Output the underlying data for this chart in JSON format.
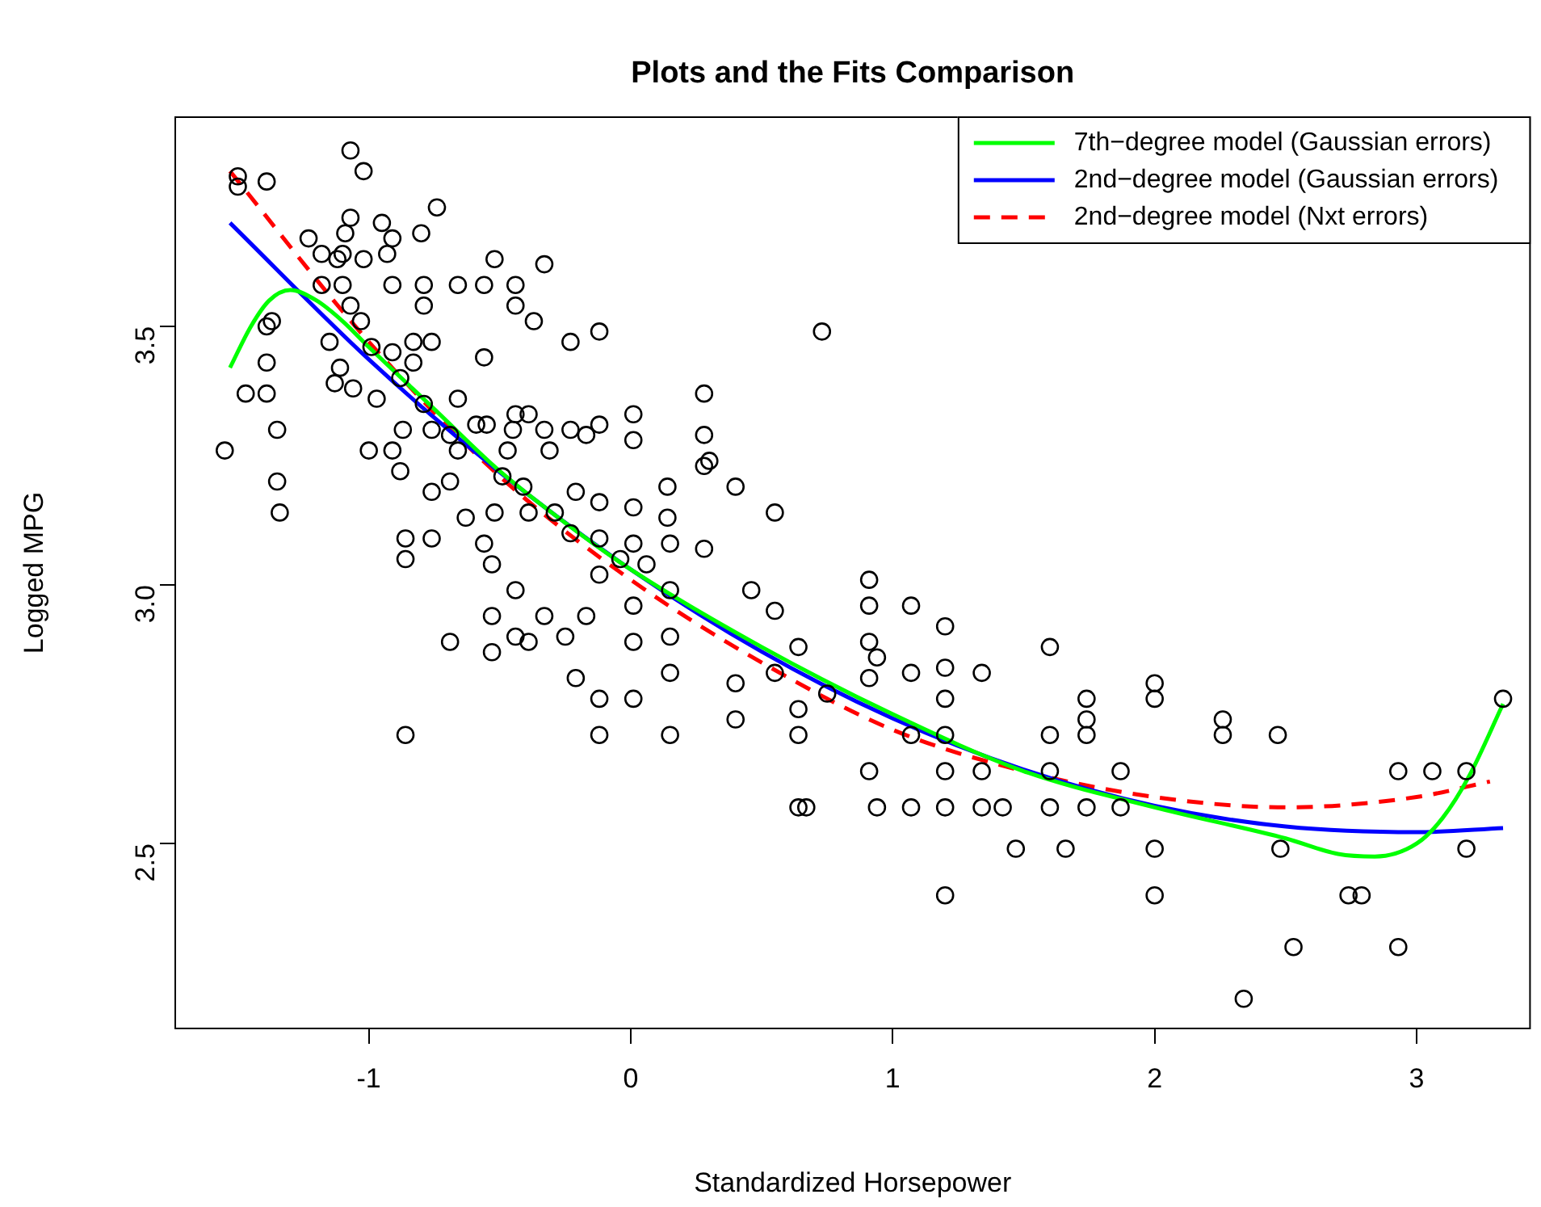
{
  "chart_data": {
    "type": "scatter",
    "title": "Plots and the Fits Comparison",
    "xlabel": "Standardized Horsepower",
    "ylabel": "Logged MPG",
    "xlim": [
      -1.742,
      3.436
    ],
    "ylim": [
      2.141,
      3.906
    ],
    "xticks": [
      -1,
      0,
      1,
      2,
      3
    ],
    "yticks": [
      2.5,
      {
        "value": 3,
        "label": "3.0"
      },
      3.5
    ],
    "grid": false,
    "legend": "top right",
    "marker": "circle",
    "series": [
      {
        "color": "#000000",
        "x": [
          -1.55,
          -1.5,
          -1.5,
          -1.39,
          -1.39,
          -1.37,
          -1.39,
          -1.39,
          -1.47,
          -1.34,
          -1.35,
          -1.35,
          -1.23,
          -1.18,
          -1.18,
          -1.15,
          -1.12,
          -1.07,
          -1.02,
          -1.07,
          -1.09,
          -1.1,
          -1.02,
          -1.1,
          -1.07,
          -1.03,
          -0.99,
          -1.11,
          -1.13,
          -1.06,
          -0.97,
          -0.91,
          -0.91,
          -0.93,
          -0.91,
          -0.95,
          -0.88,
          -0.87,
          -1.0,
          -0.91,
          -0.88,
          -0.83,
          -0.79,
          -0.79,
          -0.8,
          -0.83,
          -0.76,
          -0.79,
          -0.74,
          -0.76,
          -0.76,
          -0.76,
          -0.86,
          -0.86,
          -0.86,
          -0.69,
          -0.69,
          -0.69,
          -0.66,
          -0.66,
          -0.66,
          -0.63,
          -0.59,
          -0.56,
          -0.56,
          -0.56,
          -0.55,
          -0.52,
          -0.53,
          -0.53,
          -0.53,
          -0.52,
          -0.49,
          -0.47,
          -0.45,
          -0.44,
          -0.44,
          -0.44,
          -0.44,
          -0.44,
          -0.41,
          -0.39,
          -0.39,
          -0.39,
          -0.37,
          -0.33,
          -0.33,
          -0.33,
          -0.31,
          -0.29,
          -0.25,
          -0.23,
          -0.23,
          -0.23,
          -0.21,
          -0.21,
          -0.17,
          -0.17,
          -0.12,
          -0.12,
          -0.12,
          -0.12,
          -0.12,
          -0.12,
          -0.12,
          -0.04,
          0.01,
          0.01,
          0.01,
          0.01,
          0.01,
          0.01,
          0.01,
          0.06,
          0.14,
          0.14,
          0.15,
          0.15,
          0.15,
          0.15,
          0.15,
          0.28,
          0.28,
          0.28,
          0.28,
          0.3,
          0.4,
          0.4,
          0.4,
          0.46,
          0.55,
          0.55,
          0.55,
          0.64,
          0.64,
          0.64,
          0.64,
          0.67,
          0.73,
          0.75,
          0.91,
          0.91,
          0.91,
          0.91,
          0.91,
          0.94,
          0.94,
          1.07,
          1.07,
          1.07,
          1.07,
          1.2,
          1.2,
          1.2,
          1.2,
          1.2,
          1.2,
          1.2,
          1.34,
          1.34,
          1.34,
          1.42,
          1.47,
          1.6,
          1.6,
          1.6,
          1.6,
          1.66,
          1.74,
          1.74,
          1.74,
          1.74,
          1.87,
          1.87,
          2.0,
          2.0,
          2.0,
          2.0,
          2.26,
          2.26,
          2.47,
          2.48,
          2.53,
          2.34,
          2.74,
          2.79,
          2.93,
          2.93,
          3.06,
          3.19,
          3.19,
          3.33
        ],
        "values": [
          3.26,
          3.79,
          3.77,
          3.78,
          3.5,
          3.51,
          3.43,
          3.37,
          3.37,
          3.14,
          3.3,
          3.2,
          3.67,
          3.64,
          3.58,
          3.47,
          3.63,
          3.84,
          3.8,
          3.71,
          3.68,
          3.64,
          3.63,
          3.58,
          3.54,
          3.51,
          3.46,
          3.42,
          3.39,
          3.38,
          3.36,
          3.45,
          3.58,
          3.64,
          3.67,
          3.7,
          3.4,
          3.3,
          3.26,
          3.26,
          3.22,
          3.43,
          3.35,
          3.58,
          3.68,
          3.47,
          3.47,
          3.54,
          3.73,
          3.3,
          3.18,
          3.09,
          3.05,
          3.09,
          2.71,
          3.29,
          3.2,
          2.89,
          3.36,
          3.26,
          3.58,
          3.13,
          3.31,
          3.44,
          3.58,
          3.08,
          3.31,
          3.14,
          3.04,
          2.94,
          2.87,
          3.63,
          3.21,
          3.26,
          3.3,
          3.58,
          3.54,
          3.33,
          2.99,
          2.9,
          3.19,
          3.33,
          3.14,
          2.89,
          3.51,
          3.3,
          2.94,
          3.62,
          3.26,
          3.14,
          2.9,
          3.47,
          3.3,
          3.1,
          3.18,
          2.82,
          3.29,
          2.94,
          3.49,
          3.31,
          3.16,
          3.09,
          3.02,
          2.78,
          2.71,
          3.05,
          3.33,
          3.28,
          3.15,
          3.08,
          2.96,
          2.78,
          2.89,
          3.04,
          3.19,
          3.13,
          3.08,
          2.99,
          2.9,
          2.83,
          2.71,
          3.37,
          3.29,
          3.23,
          3.07,
          3.24,
          3.19,
          2.81,
          2.74,
          2.99,
          3.14,
          2.95,
          2.83,
          2.88,
          2.76,
          2.71,
          2.57,
          2.57,
          3.49,
          2.79,
          3.01,
          2.96,
          2.89,
          2.82,
          2.64,
          2.57,
          2.86,
          2.96,
          2.83,
          2.71,
          2.57,
          2.92,
          2.84,
          2.78,
          2.71,
          2.64,
          2.57,
          2.4,
          2.83,
          2.64,
          2.57,
          2.57,
          2.49,
          2.88,
          2.71,
          2.64,
          2.57,
          2.49,
          2.78,
          2.74,
          2.71,
          2.57,
          2.64,
          2.57,
          2.81,
          2.78,
          2.49,
          2.4,
          2.74,
          2.71,
          2.71,
          2.49,
          2.3,
          2.2,
          2.4,
          2.4,
          2.64,
          2.3,
          2.64,
          2.64,
          2.49,
          2.78
        ]
      },
      {
        "type": "line",
        "name": "7th−degree model (Gaussian errors)",
        "color": "#00ff00",
        "marker": "none",
        "line_style": "solid",
        "x": [
          -1.53,
          -1.45,
          -1.38,
          -1.3,
          -1.2,
          -1.1,
          -1,
          -0.75,
          -0.5,
          -0.25,
          0,
          0.5,
          1,
          1.5,
          2,
          2.5,
          2.7,
          2.84,
          3.0,
          3.1,
          3.2,
          3.33
        ],
        "values": [
          3.42,
          3.5,
          3.55,
          3.57,
          3.55,
          3.51,
          3.46,
          3.34,
          3.22,
          3.12,
          3.03,
          2.88,
          2.75,
          2.64,
          2.57,
          2.51,
          2.48,
          2.475,
          2.5,
          2.55,
          2.63,
          2.77
        ]
      },
      {
        "type": "line",
        "name": "2nd−degree model (Gaussian errors)",
        "color": "#0000ff",
        "marker": "none",
        "line_style": "solid",
        "x": [
          -1.53,
          -1,
          -0.5,
          0,
          0.5,
          1,
          1.5,
          2,
          2.5,
          3,
          3.33
        ],
        "values": [
          3.7,
          3.436,
          3.218,
          3.03,
          2.871,
          2.742,
          2.643,
          2.573,
          2.533,
          2.522,
          2.53
        ]
      },
      {
        "type": "line",
        "name": "2nd−degree model (Nxt errors)",
        "color": "#ff0000",
        "marker": "none",
        "line_style": "dashed",
        "x": [
          -1.53,
          -1,
          -0.5,
          0,
          0.5,
          1,
          1.5,
          2,
          2.5,
          3,
          3.28
        ],
        "values": [
          3.8,
          3.47,
          3.21,
          3.01,
          2.85,
          2.72,
          2.64,
          2.59,
          2.57,
          2.59,
          2.62
        ]
      }
    ]
  }
}
